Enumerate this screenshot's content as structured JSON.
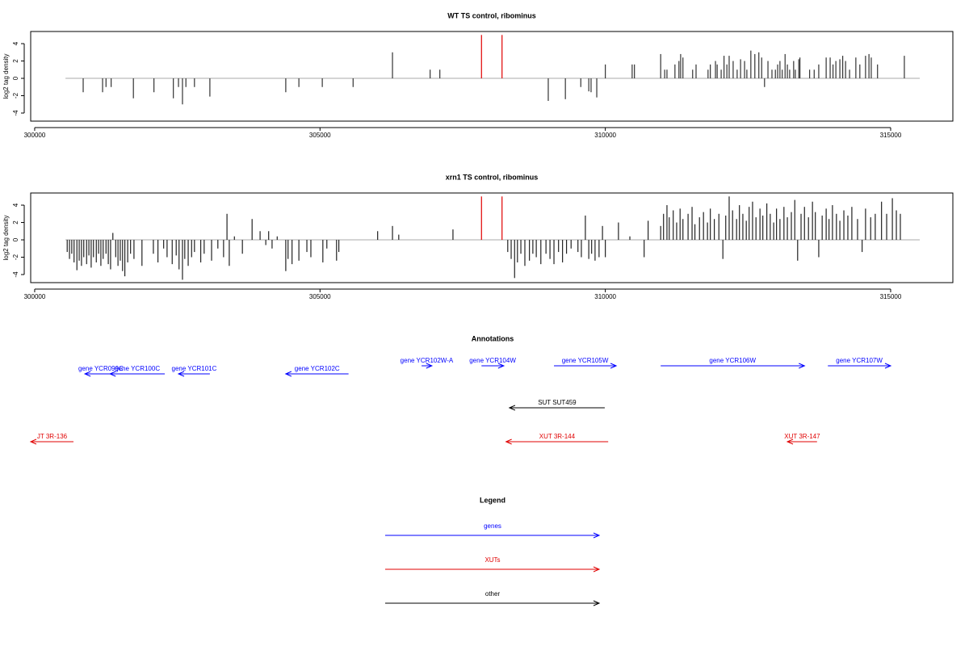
{
  "chart_data": [
    {
      "type": "bar",
      "title": "WT TS control, ribominus",
      "ylabel": "log2 tag density",
      "xlim": [
        299930,
        316090
      ],
      "ylim": [
        -4.93,
        5.4
      ],
      "xticks": [
        300000,
        305000,
        310000,
        315000
      ],
      "yticks": [
        -4,
        -2,
        0,
        2,
        4
      ],
      "region": [
        300540,
        315510
      ],
      "color": "#333333",
      "x": [
        300850,
        301190,
        301250,
        301340,
        301730,
        302090,
        302430,
        302520,
        302590,
        302650,
        302800,
        303070,
        304400,
        304630,
        305040,
        305580,
        306270,
        306930,
        307100,
        309000,
        309300,
        309570,
        309710,
        309750,
        309850,
        310000,
        310470,
        310510,
        310970,
        311040,
        311080,
        311220,
        311290,
        311320,
        311360,
        311530,
        311590,
        311800,
        311840,
        311930,
        311960,
        312030,
        312080,
        312130,
        312170,
        312240,
        312310,
        312370,
        312440,
        312480,
        312550,
        312620,
        312690,
        312740,
        312790,
        312850,
        312920,
        312980,
        313020,
        313060,
        313100,
        313150,
        313190,
        313230,
        313300,
        313330,
        313390,
        313410,
        313580,
        313660,
        313740,
        313870,
        313940,
        313990,
        314040,
        314110,
        314160,
        314210,
        314280,
        314390,
        314460,
        314560,
        314620,
        314660,
        314770,
        315240
      ],
      "values": [
        -1.6,
        -1.6,
        -1,
        -1,
        -2.3,
        -1.6,
        -2.3,
        -1,
        -3,
        -1,
        -1,
        -2.1,
        -1.6,
        -1,
        -1,
        -1,
        3,
        1,
        1,
        -2.6,
        -2.4,
        -1,
        -1.5,
        -1.6,
        -2.2,
        1.6,
        1.6,
        1.6,
        2.8,
        1,
        1,
        1.6,
        2,
        2.8,
        2.4,
        1,
        1.6,
        1,
        1.6,
        2,
        1.6,
        1,
        2.6,
        1.6,
        2.6,
        2,
        1,
        2.2,
        2,
        1,
        3.2,
        2.8,
        3,
        2.4,
        -1,
        2,
        1,
        1,
        1.6,
        2,
        1,
        2.8,
        1.6,
        1,
        2,
        1,
        2.2,
        2.4,
        1,
        1,
        1.6,
        2.4,
        2.4,
        1.6,
        2,
        2.2,
        2.6,
        2,
        1,
        2.4,
        1.6,
        2.6,
        2.8,
        2.4,
        1.6,
        2.6
      ],
      "highlight": {
        "color": "#e00000",
        "x": [
          307830,
          308190
        ],
        "values": [
          5,
          5
        ]
      }
    },
    {
      "type": "bar",
      "title": "xrn1 TS control, ribominus",
      "ylabel": "log2 tag density",
      "xlim": [
        299930,
        316090
      ],
      "ylim": [
        -4.93,
        5.4
      ],
      "xticks": [
        300000,
        305000,
        310000,
        315000
      ],
      "yticks": [
        -4,
        -2,
        0,
        2,
        4
      ],
      "region": [
        300540,
        315510
      ],
      "color": "#222222",
      "x": [
        300570,
        300610,
        300650,
        300690,
        300740,
        300780,
        300820,
        300860,
        300910,
        300950,
        300990,
        301030,
        301080,
        301120,
        301160,
        301200,
        301250,
        301290,
        301330,
        301370,
        301420,
        301460,
        301500,
        301540,
        301580,
        301630,
        301680,
        301740,
        301880,
        302080,
        302160,
        302260,
        302320,
        302410,
        302480,
        302530,
        302590,
        302630,
        302690,
        302750,
        302800,
        302910,
        302970,
        303100,
        303210,
        303310,
        303370,
        303410,
        303500,
        303640,
        303810,
        303950,
        304050,
        304100,
        304160,
        304250,
        304400,
        304440,
        304510,
        304630,
        304770,
        304840,
        305050,
        305120,
        305290,
        305330,
        306010,
        306270,
        306380,
        307330,
        308290,
        308350,
        308410,
        308460,
        308520,
        308590,
        308670,
        308730,
        308790,
        308870,
        308960,
        309030,
        309100,
        309180,
        309250,
        309320,
        309400,
        309520,
        309580,
        309650,
        309710,
        309760,
        309820,
        309890,
        309950,
        310000,
        310230,
        310430,
        310680,
        310750,
        310970,
        311020,
        311080,
        311120,
        311190,
        311250,
        311310,
        311360,
        311450,
        311520,
        311570,
        311650,
        311720,
        311790,
        311840,
        311910,
        311990,
        312060,
        312110,
        312170,
        312230,
        312300,
        312350,
        312410,
        312470,
        312520,
        312580,
        312640,
        312710,
        312760,
        312830,
        312890,
        312950,
        313000,
        313060,
        313130,
        313190,
        313260,
        313320,
        313370,
        313430,
        313490,
        313560,
        313630,
        313680,
        313740,
        313800,
        313870,
        313920,
        313980,
        314050,
        314110,
        314180,
        314250,
        314320,
        314420,
        314500,
        314560,
        314650,
        314730,
        314840,
        314930,
        315030,
        315100,
        315170
      ],
      "values": [
        -1.4,
        -2.2,
        -1.6,
        -2.6,
        -3.5,
        -2.4,
        -3,
        -2,
        -2.8,
        -1.8,
        -3.2,
        -2,
        -2.6,
        -1.6,
        -3,
        -2.2,
        -1.6,
        -2.8,
        -3.4,
        0.8,
        -2,
        -3,
        -2.4,
        -3.6,
        -4.2,
        -2.6,
        -1.6,
        -2.2,
        -3,
        -1.6,
        -2.6,
        -1,
        -2,
        -2.8,
        -1.8,
        -3.4,
        -4.6,
        -2.2,
        -3,
        -2,
        -1.4,
        -2.6,
        -1.6,
        -2.4,
        -1,
        -2,
        3,
        -3,
        0.4,
        -1.6,
        2.4,
        1,
        -0.6,
        1,
        -1,
        0.4,
        -3.6,
        -2.2,
        -2.8,
        -2.4,
        -1.4,
        -2,
        -2.6,
        -1,
        -2.4,
        -1.4,
        1,
        1.6,
        0.6,
        1.2,
        -1.4,
        -2.2,
        -4.4,
        -2.6,
        -1.6,
        -3,
        -2.4,
        -1.6,
        -2,
        -2.8,
        -1.6,
        -2.2,
        -2.8,
        -1.4,
        -2.6,
        -1.6,
        -1,
        -1.4,
        -2,
        2.8,
        -2.2,
        -1.6,
        -2.4,
        -2,
        1.6,
        -2,
        2,
        0.4,
        -2,
        2.2,
        1.6,
        3,
        4,
        2.6,
        3.4,
        2,
        3.6,
        2.4,
        3,
        3.8,
        1.8,
        2.6,
        3.2,
        2,
        3.6,
        2.4,
        3,
        -2.2,
        2.8,
        5,
        3.4,
        2.4,
        4,
        3,
        2.2,
        3.8,
        4.4,
        2.6,
        3.6,
        2.8,
        4.2,
        3,
        2,
        3.6,
        2.4,
        3.8,
        2.6,
        3.2,
        4.6,
        -2.4,
        3,
        3.8,
        2.6,
        4.4,
        3.2,
        -2,
        2.8,
        3.6,
        2.4,
        4,
        3,
        2.2,
        3.4,
        2.8,
        3.8,
        2.4,
        -1.4,
        3.6,
        2.6,
        3,
        4.4,
        3,
        4.8,
        3.4,
        3
      ],
      "highlight": {
        "color": "#e00000",
        "x": [
          307830,
          308190
        ],
        "values": [
          5,
          5
        ]
      }
    }
  ],
  "annotations": {
    "title": "Annotations",
    "tracks": [
      {
        "color": "#0000ff",
        "items": [
          {
            "label": "gene YCR099C",
            "from": 301440,
            "to": 300880
          },
          {
            "label": "gene YCR100C",
            "from": 302280,
            "to": 301320
          },
          {
            "label": "gene YCR101C",
            "from": 303070,
            "to": 302520
          },
          {
            "label": "gene YCR102C",
            "from": 305500,
            "to": 304400
          },
          {
            "label": "gene YCR102W-A",
            "from": 306780,
            "to": 306960
          },
          {
            "label": "gene YCR104W",
            "from": 307830,
            "to": 308220
          },
          {
            "label": "gene YCR105W",
            "from": 309100,
            "to": 310190
          },
          {
            "label": "gene YCR106W",
            "from": 310970,
            "to": 313490
          },
          {
            "label": "gene YCR107W",
            "from": 313900,
            "to": 315000
          }
        ]
      },
      {
        "color": "#000000",
        "items": [
          {
            "label": "SUT SUT459",
            "from": 309990,
            "to": 308320
          }
        ]
      },
      {
        "color": "#e00000",
        "items": [
          {
            "label": "JT 3R-136",
            "from": 300680,
            "to": 299930
          },
          {
            "label": "XUT 3R-144",
            "from": 310050,
            "to": 308260
          },
          {
            "label": "XUT 3R-147",
            "from": 313710,
            "to": 313190
          }
        ]
      }
    ]
  },
  "legend": {
    "title": "Legend",
    "entries": [
      {
        "label": "genes",
        "color": "#0000ff"
      },
      {
        "label": "XUTs",
        "color": "#e00000"
      },
      {
        "label": "other",
        "color": "#000000"
      }
    ]
  }
}
